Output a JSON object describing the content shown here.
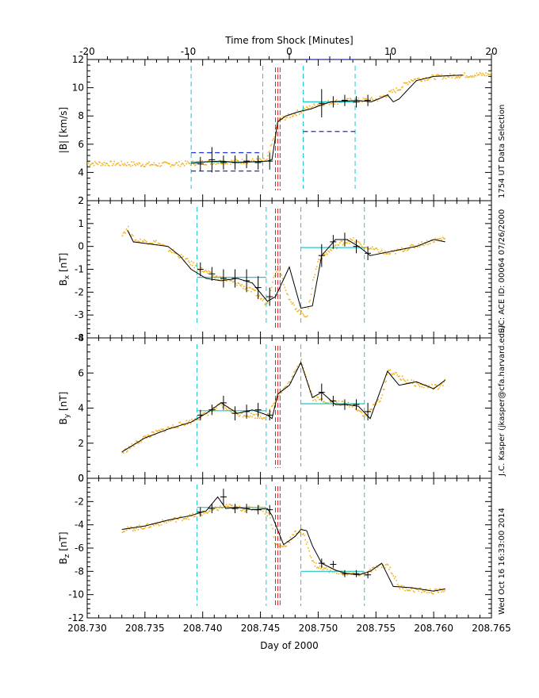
{
  "figure": {
    "top_axis_label": "Time from Shock [Minutes]",
    "bottom_axis_label": "Day of 2000",
    "side_caption_1": "1754 UT Data Selection",
    "side_caption_2": "S/C: ACE ID: 00064 07/26/2000",
    "side_caption_3": "J.C. Kasper (jkasper@cfa.harvard.edu)",
    "side_caption_4": "Wed Oct 16 16:33:00 2014",
    "colors": {
      "data": "#f2b21b",
      "fit": "#000000",
      "interval": "#21c8c8",
      "shock": "#e02020",
      "band": "#1e2fd0"
    }
  },
  "chart_data": [
    {
      "type": "line",
      "id": "top-axis",
      "xlabel": "Time from Shock [Minutes]",
      "xlim": [
        -20,
        20
      ],
      "tick_labels": [
        "-20",
        "-10",
        "0",
        "10",
        "20"
      ],
      "tick_values": [
        -20,
        -10,
        0,
        10,
        20
      ]
    },
    {
      "type": "line",
      "title": "|B| panel",
      "ylabel": "|B| [km/s]",
      "xlim": [
        208.73,
        208.765
      ],
      "ylim": [
        2,
        12
      ],
      "ytick_values": [
        2,
        4,
        6,
        8,
        10,
        12
      ],
      "ytick_labels": [
        "2",
        "4",
        "6",
        "8",
        "10",
        "12"
      ],
      "data_x": [
        208.73,
        208.733,
        208.736,
        208.738,
        208.74,
        208.742,
        208.744,
        208.7455,
        208.746,
        208.7465,
        208.747,
        208.7485,
        208.75,
        208.752,
        208.755,
        208.756,
        208.757,
        208.758,
        208.76,
        208.762,
        208.765
      ],
      "data_y": [
        4.7,
        4.65,
        4.6,
        4.65,
        4.75,
        4.8,
        4.85,
        4.9,
        6.2,
        7.7,
        7.9,
        8.4,
        8.9,
        9.1,
        9.2,
        9.6,
        10.0,
        10.6,
        10.8,
        10.9,
        11.0
      ],
      "fit_x": [
        208.739,
        208.7403,
        208.7416,
        208.743,
        208.7443,
        208.7456,
        208.746,
        208.7465,
        208.7472,
        208.7483,
        208.7494,
        208.75,
        208.7511,
        208.7523,
        208.7534,
        208.7546,
        208.7555,
        208.756,
        208.7565,
        208.757,
        208.7585,
        208.76,
        208.7625
      ],
      "fit_y": [
        4.65,
        4.75,
        4.8,
        4.7,
        4.75,
        4.8,
        4.9,
        7.6,
        8.0,
        8.3,
        8.5,
        8.7,
        9.0,
        9.05,
        9.1,
        9.0,
        9.3,
        9.5,
        9.0,
        9.2,
        10.5,
        10.8,
        10.9
      ],
      "errorbar_x": [
        208.7398,
        208.7408,
        208.7418,
        208.7428,
        208.7438,
        208.7448,
        208.7458,
        208.7503,
        208.7513,
        208.7523,
        208.7533,
        208.7543
      ],
      "errorbar_y": [
        4.6,
        4.9,
        4.7,
        4.7,
        4.8,
        4.7,
        4.8,
        8.9,
        9.0,
        9.1,
        9.0,
        9.1
      ],
      "errorbar_err": [
        0.5,
        0.9,
        0.5,
        0.5,
        0.5,
        0.5,
        0.6,
        1.0,
        0.4,
        0.4,
        0.4,
        0.4
      ],
      "intervals_x": [
        208.739,
        208.7452,
        208.7487,
        208.7532
      ],
      "shock_x": [
        208.7463,
        208.7465,
        208.7467
      ],
      "band_levels": [
        {
          "x": [
            208.739,
            208.7452
          ],
          "y": [
            5.4,
            4.1
          ]
        },
        {
          "x": [
            208.7487,
            208.7532
          ],
          "y": [
            12.0,
            6.9
          ]
        }
      ],
      "mean_levels": [
        {
          "x": [
            208.739,
            208.7452
          ],
          "y": 4.75
        },
        {
          "x": [
            208.7487,
            208.7532
          ],
          "y": 9.0
        }
      ]
    },
    {
      "type": "line",
      "title": "Bx panel",
      "ylabel": "Bx [nT]",
      "xlim": [
        208.73,
        208.765
      ],
      "ylim": [
        -4,
        2
      ],
      "ytick_values": [
        -4,
        -3,
        -2,
        -1,
        0,
        1,
        2
      ],
      "ytick_labels": [
        "-4",
        "-3",
        "-2",
        "-1",
        "0",
        "1",
        "2"
      ],
      "data_x": [
        208.733,
        208.7335,
        208.734,
        208.736,
        208.738,
        208.7395,
        208.741,
        208.743,
        208.7445,
        208.7455,
        208.746,
        208.7465,
        208.7475,
        208.7485,
        208.749,
        208.7495,
        208.75,
        208.752,
        208.753,
        208.754,
        208.756,
        208.758,
        208.76,
        208.761
      ],
      "data_y": [
        0.6,
        0.8,
        0.3,
        0.2,
        -0.4,
        -0.9,
        -1.3,
        -1.6,
        -2.0,
        -2.5,
        -1.5,
        -0.8,
        -2.4,
        -2.9,
        -3.0,
        -1.5,
        -0.5,
        0.2,
        0.3,
        0.0,
        -0.3,
        0.0,
        0.3,
        0.4
      ],
      "fit_x": [
        208.7335,
        208.734,
        208.7355,
        208.737,
        208.738,
        208.739,
        208.7403,
        208.7416,
        208.743,
        208.7443,
        208.7456,
        208.7463,
        208.7475,
        208.7485,
        208.7495,
        208.7503,
        208.7515,
        208.7525,
        208.7535,
        208.7545,
        208.7565,
        208.7585,
        208.76,
        208.761
      ],
      "fit_y": [
        0.7,
        0.2,
        0.1,
        0.0,
        -0.4,
        -1.0,
        -1.4,
        -1.5,
        -1.4,
        -1.6,
        -2.4,
        -2.2,
        -0.9,
        -2.7,
        -2.6,
        -0.4,
        0.3,
        0.3,
        0.0,
        -0.4,
        -0.2,
        0.0,
        0.3,
        0.2
      ],
      "errorbar_x": [
        208.7398,
        208.7408,
        208.7418,
        208.7428,
        208.7438,
        208.7448,
        208.7458,
        208.7503,
        208.7513,
        208.7523,
        208.7533,
        208.7543
      ],
      "errorbar_y": [
        -1.0,
        -1.2,
        -1.4,
        -1.4,
        -1.5,
        -1.8,
        -2.2,
        -0.4,
        0.2,
        0.3,
        0.0,
        -0.3
      ],
      "errorbar_err": [
        0.3,
        0.3,
        0.4,
        0.4,
        0.5,
        0.5,
        0.4,
        0.5,
        0.3,
        0.3,
        0.3,
        0.3
      ],
      "intervals_x": [
        208.7395,
        208.7455,
        208.7485,
        208.754
      ],
      "shock_x": [
        208.7463,
        208.7465,
        208.7467
      ],
      "mean_levels": [
        {
          "x": [
            208.7395,
            208.7455
          ],
          "y": -1.35
        },
        {
          "x": [
            208.7485,
            208.754
          ],
          "y": -0.05
        }
      ]
    },
    {
      "type": "line",
      "title": "By panel",
      "ylabel": "By [nT]",
      "xlim": [
        208.73,
        208.765
      ],
      "ylim": [
        0,
        8
      ],
      "ytick_values": [
        0,
        2,
        4,
        6,
        8
      ],
      "ytick_labels": [
        "0",
        "2",
        "4",
        "6",
        "8"
      ],
      "data_x": [
        208.733,
        208.735,
        208.737,
        208.739,
        208.7405,
        208.7415,
        208.743,
        208.7445,
        208.7455,
        208.746,
        208.7465,
        208.7475,
        208.7485,
        208.749,
        208.7495,
        208.751,
        208.753,
        208.754,
        208.7555,
        208.756,
        208.7575,
        208.759,
        208.7605,
        208.761
      ],
      "data_y": [
        1.5,
        2.4,
        2.9,
        3.3,
        3.8,
        4.2,
        3.7,
        3.6,
        3.5,
        4.2,
        4.8,
        5.5,
        6.8,
        5.6,
        4.6,
        4.4,
        4.2,
        3.6,
        4.7,
        6.2,
        5.6,
        5.3,
        5.2,
        5.6
      ],
      "fit_x": [
        208.733,
        208.735,
        208.737,
        208.739,
        208.7403,
        208.7416,
        208.743,
        208.7443,
        208.7456,
        208.746,
        208.7465,
        208.7475,
        208.7485,
        208.7495,
        208.7503,
        208.7515,
        208.7525,
        208.7535,
        208.7545,
        208.756,
        208.757,
        208.7585,
        208.76,
        208.761
      ],
      "fit_y": [
        1.5,
        2.3,
        2.8,
        3.2,
        3.7,
        4.3,
        3.7,
        3.9,
        3.6,
        3.4,
        4.8,
        5.3,
        6.6,
        4.6,
        4.9,
        4.2,
        4.2,
        4.1,
        3.4,
        6.1,
        5.3,
        5.5,
        5.1,
        5.6
      ],
      "errorbar_x": [
        208.7398,
        208.7408,
        208.7418,
        208.7428,
        208.7438,
        208.7448,
        208.7458,
        208.7503,
        208.7513,
        208.7523,
        208.7533,
        208.7543
      ],
      "errorbar_y": [
        3.6,
        3.9,
        4.3,
        3.7,
        3.8,
        3.9,
        3.6,
        4.9,
        4.4,
        4.2,
        4.2,
        3.8
      ],
      "errorbar_err": [
        0.3,
        0.3,
        0.4,
        0.4,
        0.4,
        0.4,
        0.3,
        0.5,
        0.3,
        0.3,
        0.3,
        0.5
      ],
      "intervals_x": [
        208.7395,
        208.7455,
        208.7485,
        208.754
      ],
      "shock_x": [
        208.7463,
        208.7465,
        208.7467
      ],
      "mean_levels": [
        {
          "x": [
            208.7395,
            208.7455
          ],
          "y": 3.85
        },
        {
          "x": [
            208.7485,
            208.754
          ],
          "y": 4.25
        }
      ]
    },
    {
      "type": "line",
      "title": "Bz panel",
      "ylabel": "Bz [nT]",
      "xlabel": "Day of 2000",
      "xlim": [
        208.73,
        208.765
      ],
      "ylim": [
        -12,
        0
      ],
      "ytick_values": [
        -12,
        -10,
        -8,
        -6,
        -4,
        -2,
        0
      ],
      "ytick_labels": [
        "-12",
        "-10",
        "-8",
        "-6",
        "-4",
        "-2",
        "0"
      ],
      "xtick_values": [
        208.73,
        208.735,
        208.74,
        208.745,
        208.75,
        208.755,
        208.76,
        208.765
      ],
      "xtick_labels": [
        "208.730",
        "208.735",
        "208.740",
        "208.745",
        "208.750",
        "208.755",
        "208.760",
        "208.765"
      ],
      "data_x": [
        208.733,
        208.735,
        208.737,
        208.739,
        208.7405,
        208.742,
        208.7435,
        208.745,
        208.7458,
        208.7462,
        208.747,
        208.748,
        208.7485,
        208.749,
        208.7495,
        208.75,
        208.752,
        208.754,
        208.755,
        208.756,
        208.757,
        208.758,
        208.76,
        208.761
      ],
      "data_y": [
        -4.4,
        -4.1,
        -3.6,
        -3.2,
        -2.8,
        -2.3,
        -2.6,
        -2.5,
        -3.2,
        -5.6,
        -5.8,
        -4.6,
        -4.5,
        -5.6,
        -7.2,
        -7.6,
        -8.1,
        -8.2,
        -7.6,
        -7.4,
        -9.3,
        -9.5,
        -9.7,
        -9.5
      ],
      "fit_x": [
        208.733,
        208.735,
        208.737,
        208.739,
        208.7403,
        208.7413,
        208.742,
        208.743,
        208.7443,
        208.7456,
        208.746,
        208.747,
        208.748,
        208.7485,
        208.749,
        208.7495,
        208.7503,
        208.7515,
        208.7525,
        208.7535,
        208.7545,
        208.7555,
        208.7565,
        208.758,
        208.76,
        208.761
      ],
      "fit_y": [
        -4.4,
        -4.1,
        -3.6,
        -3.2,
        -2.8,
        -1.6,
        -2.6,
        -2.5,
        -2.7,
        -2.6,
        -3.2,
        -5.7,
        -5.0,
        -4.4,
        -4.5,
        -5.8,
        -7.3,
        -7.9,
        -8.2,
        -8.3,
        -8.0,
        -7.3,
        -9.3,
        -9.4,
        -9.7,
        -9.5
      ],
      "errorbar_x": [
        208.7398,
        208.7408,
        208.7418,
        208.7428,
        208.7438,
        208.7448,
        208.7458,
        208.7503,
        208.7513,
        208.7523,
        208.7533,
        208.7543
      ],
      "errorbar_y": [
        -2.9,
        -2.6,
        -1.6,
        -2.6,
        -2.6,
        -2.7,
        -2.7,
        -7.3,
        -7.4,
        -8.2,
        -8.2,
        -8.3
      ],
      "errorbar_err": [
        0.4,
        0.4,
        0.7,
        0.4,
        0.4,
        0.4,
        0.4,
        0.4,
        0.3,
        0.3,
        0.3,
        0.3
      ],
      "intervals_x": [
        208.7395,
        208.7455,
        208.7485,
        208.754
      ],
      "shock_x": [
        208.7463,
        208.7465,
        208.7467
      ],
      "mean_levels": [
        {
          "x": [
            208.7395,
            208.7455
          ],
          "y": -2.5
        },
        {
          "x": [
            208.7485,
            208.754
          ],
          "y": -8.0
        }
      ]
    }
  ]
}
